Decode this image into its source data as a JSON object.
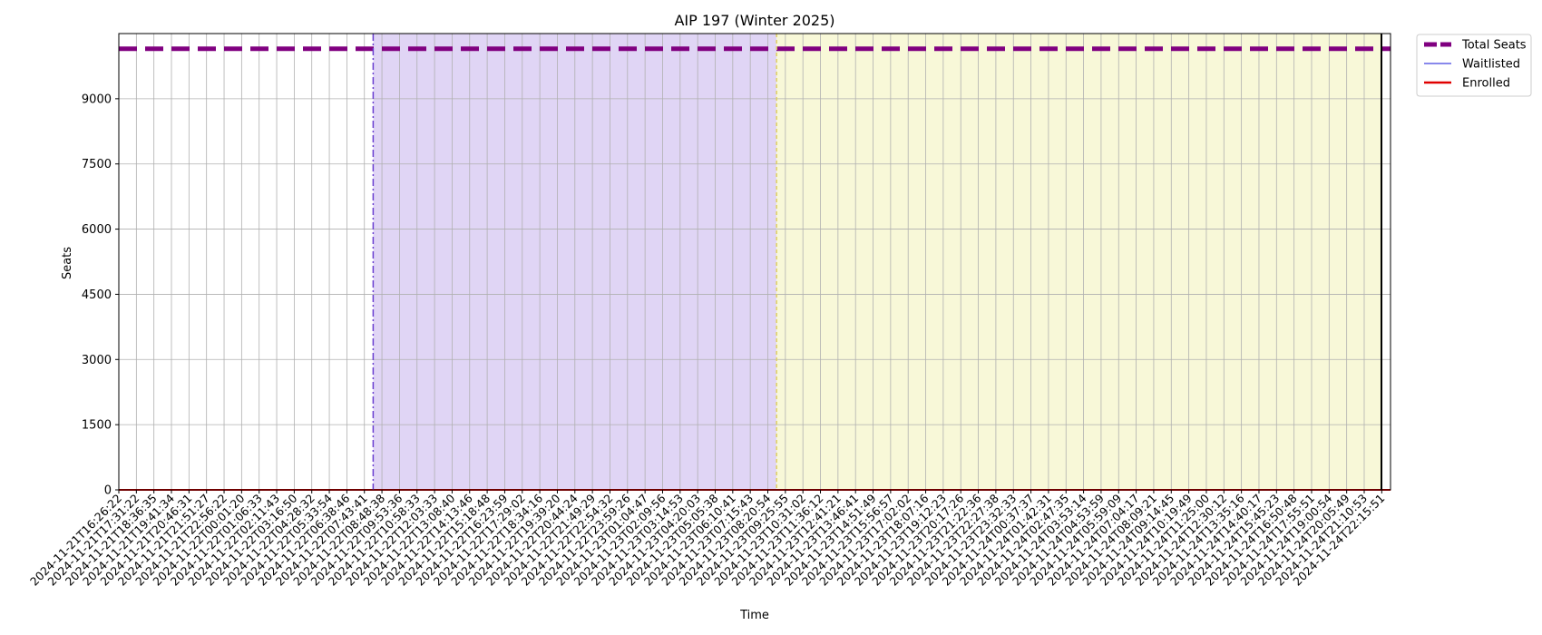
{
  "chart_data": {
    "type": "line",
    "title": "AIP 197 (Winter 2025)",
    "xlabel": "Time",
    "ylabel": "Seats",
    "ylim": [
      0,
      10500
    ],
    "yticks": [
      0,
      1500,
      3000,
      4500,
      6000,
      7500,
      9000
    ],
    "grid": true,
    "legend_position": "outside top-right",
    "categories": [
      "2024-11-21T16:26:22",
      "2024-11-21T17:31:22",
      "2024-11-21T18:36:35",
      "2024-11-21T19:41:34",
      "2024-11-21T20:46:31",
      "2024-11-21T21:51:27",
      "2024-11-21T22:56:22",
      "2024-11-22T00:01:20",
      "2024-11-22T01:06:33",
      "2024-11-22T02:11:43",
      "2024-11-22T03:16:50",
      "2024-11-22T04:28:32",
      "2024-11-22T05:33:54",
      "2024-11-22T06:38:46",
      "2024-11-22T07:43:41",
      "2024-11-22T08:48:38",
      "2024-11-22T09:53:36",
      "2024-11-22T10:58:33",
      "2024-11-22T12:03:33",
      "2024-11-22T13:08:40",
      "2024-11-22T14:13:46",
      "2024-11-22T15:18:48",
      "2024-11-22T16:23:59",
      "2024-11-22T17:29:02",
      "2024-11-22T18:34:16",
      "2024-11-22T19:39:20",
      "2024-11-22T20:44:24",
      "2024-11-22T21:49:29",
      "2024-11-22T22:54:32",
      "2024-11-22T23:59:26",
      "2024-11-23T01:04:47",
      "2024-11-23T02:09:56",
      "2024-11-23T03:14:53",
      "2024-11-23T04:20:03",
      "2024-11-23T05:05:38",
      "2024-11-23T06:10:41",
      "2024-11-23T07:15:43",
      "2024-11-23T08:20:54",
      "2024-11-23T09:25:55",
      "2024-11-23T10:31:02",
      "2024-11-23T11:36:12",
      "2024-11-23T12:41:21",
      "2024-11-23T13:46:41",
      "2024-11-23T14:51:49",
      "2024-11-23T15:56:57",
      "2024-11-23T17:02:02",
      "2024-11-23T18:07:16",
      "2024-11-23T19:12:23",
      "2024-11-23T20:17:26",
      "2024-11-23T21:22:36",
      "2024-11-23T22:27:38",
      "2024-11-23T23:32:33",
      "2024-11-24T00:37:37",
      "2024-11-24T01:42:31",
      "2024-11-24T02:47:35",
      "2024-11-24T03:53:14",
      "2024-11-24T04:53:59",
      "2024-11-24T05:59:09",
      "2024-11-24T07:04:17",
      "2024-11-24T08:09:21",
      "2024-11-24T09:14:45",
      "2024-11-24T10:19:49",
      "2024-11-24T11:25:00",
      "2024-11-24T12:30:12",
      "2024-11-24T13:35:16",
      "2024-11-24T14:40:17",
      "2024-11-24T15:45:23",
      "2024-11-24T16:50:48",
      "2024-11-24T17:55:51",
      "2024-11-24T19:00:54",
      "2024-11-24T20:05:49",
      "2024-11-24T21:10:53",
      "2024-11-24T22:15:51"
    ],
    "series": [
      {
        "name": "Total Seats",
        "color": "#800080",
        "style": "dashed-thick",
        "value": 10150
      },
      {
        "name": "Waitlisted",
        "color": "#4040e0",
        "style": "solid-thin",
        "value": 0
      },
      {
        "name": "Enrolled",
        "color": "#e00000",
        "style": "solid",
        "value": 0
      }
    ],
    "regions": [
      {
        "name": "purple-region",
        "start_index": 14.5,
        "end_index": 37.5,
        "color": "#e0d5f5"
      },
      {
        "name": "yellow-region",
        "start_index": 37.5,
        "end_index": 72,
        "color": "#f8f8d8"
      }
    ],
    "marker_lines": [
      {
        "name": "region-start-line",
        "index": 14.5,
        "color": "#6a3fd0",
        "style": "dashdot"
      },
      {
        "name": "region-boundary-line",
        "index": 37.5,
        "color": "#e0d060",
        "style": "dashed"
      },
      {
        "name": "end-line",
        "index": 72,
        "color": "#000000",
        "style": "solid"
      }
    ]
  }
}
